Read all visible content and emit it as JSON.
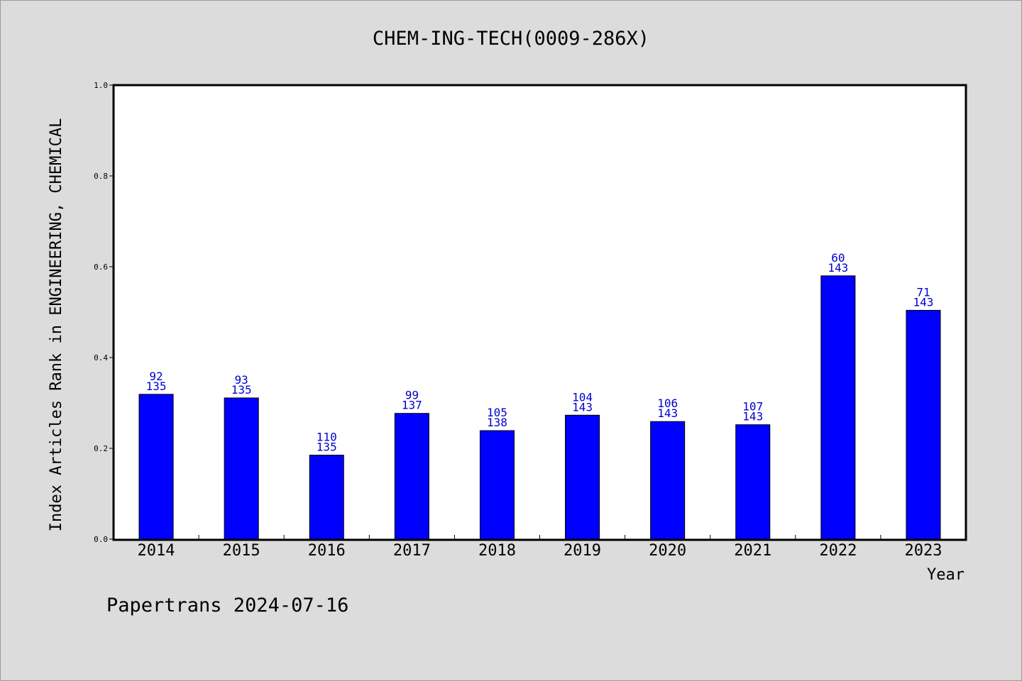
{
  "chart_data": {
    "type": "bar",
    "title": "CHEM-ING-TECH(0009-286X)",
    "xlabel": "Year",
    "ylabel": "Index Articles Rank in ENGINEERING, CHEMICAL",
    "categories": [
      "2014",
      "2015",
      "2016",
      "2017",
      "2018",
      "2019",
      "2020",
      "2021",
      "2022",
      "2023"
    ],
    "values": [
      0.319,
      0.311,
      0.185,
      0.277,
      0.239,
      0.273,
      0.259,
      0.252,
      0.58,
      0.504
    ],
    "rank": [
      "92",
      "93",
      "110",
      "99",
      "105",
      "104",
      "106",
      "107",
      "60",
      "71"
    ],
    "total": [
      "135",
      "135",
      "135",
      "137",
      "138",
      "143",
      "143",
      "143",
      "143",
      "143"
    ],
    "ylim": [
      0,
      1.0
    ],
    "yticks": [
      "0.0",
      "0.2",
      "0.4",
      "0.6",
      "0.8",
      "1.0"
    ],
    "bar_color": "#0000ff",
    "label_color": "#0000cc",
    "grid": false,
    "legend": "none"
  },
  "footer": "Papertrans 2024-07-16"
}
